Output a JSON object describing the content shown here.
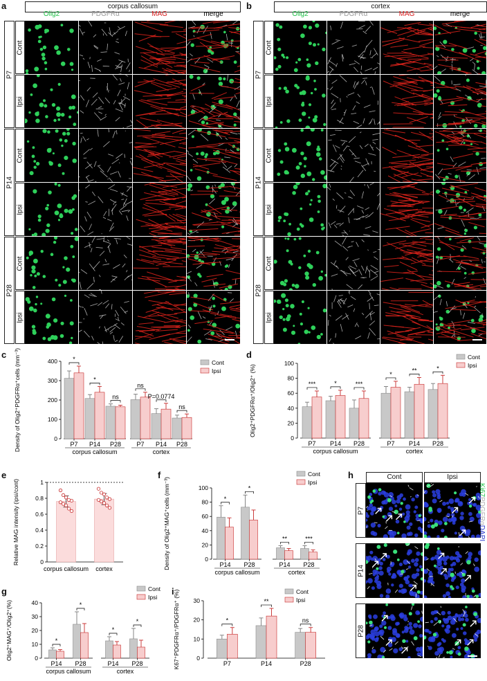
{
  "micrograph_panels": {
    "a": {
      "letter": "a",
      "region": "corpus callosum"
    },
    "b": {
      "letter": "b",
      "region": "cortex"
    },
    "channels": [
      "Olig2",
      "PDGFRα",
      "MAG",
      "merge"
    ],
    "channel_colors": [
      "#22c34a",
      "#9a9a9a",
      "#d81e1e",
      "#000000"
    ],
    "ages": [
      "P7",
      "P14",
      "P28"
    ],
    "conditions": [
      "Cont",
      "Ipsi"
    ],
    "h": {
      "letter": "h",
      "columns": [
        "Cont",
        "Ipsi"
      ],
      "ages": [
        "P7",
        "P14",
        "P28"
      ],
      "stain": [
        {
          "text": "Ki67",
          "color": "#22c34a"
        },
        {
          "text": "PDGFRα",
          "color": "#b0b0b0"
        },
        {
          "text": "DAPI",
          "color": "#2233cc"
        }
      ]
    }
  },
  "chart_data": [
    {
      "id": "c",
      "letter": "c",
      "type": "bar",
      "ylabel": "Density of Olig2⁺PDGFRα⁺cells (mm⁻³)",
      "ylim": [
        0,
        400
      ],
      "yticks": [
        0,
        100,
        200,
        300,
        400
      ],
      "groups": [
        {
          "label": "corpus callosum",
          "categories": [
            "P7",
            "P14",
            "P28"
          ]
        },
        {
          "label": "cortex",
          "categories": [
            "P7",
            "P14",
            "P28"
          ]
        }
      ],
      "series": [
        {
          "name": "Cont",
          "values": [
            312,
            208,
            168,
            202,
            130,
            107
          ],
          "errors": [
            38,
            20,
            12,
            28,
            25,
            15
          ]
        },
        {
          "name": "Ipsi",
          "values": [
            340,
            240,
            165,
            215,
            153,
            110
          ],
          "errors": [
            35,
            30,
            8,
            25,
            30,
            18
          ]
        }
      ],
      "annotations": [
        "*",
        "*",
        "ns",
        "ns",
        "P=0.0774",
        "ns"
      ]
    },
    {
      "id": "d",
      "letter": "d",
      "type": "bar",
      "ylabel": "Olig2⁺PDGFRα⁺/Olig2⁺ (%)",
      "ylim": [
        0,
        100
      ],
      "yticks": [
        0,
        20,
        40,
        60,
        80,
        100
      ],
      "groups": [
        {
          "label": "corpus callosum",
          "categories": [
            "P7",
            "P14",
            "P28"
          ]
        },
        {
          "label": "cortex",
          "categories": [
            "P7",
            "P14",
            "P28"
          ]
        }
      ],
      "series": [
        {
          "name": "Cont",
          "values": [
            42,
            50,
            40,
            60,
            62,
            65
          ],
          "errors": [
            6,
            6,
            11,
            9,
            6,
            8
          ]
        },
        {
          "name": "Ipsi",
          "values": [
            55,
            57,
            53,
            68,
            72,
            73
          ],
          "errors": [
            8,
            7,
            10,
            8,
            9,
            11
          ]
        }
      ],
      "annotations": [
        "***",
        "*",
        "***",
        "*",
        "**",
        "*"
      ]
    },
    {
      "id": "e",
      "letter": "e",
      "type": "bar",
      "ylabel": "Relative MAG intensity (ipsi/cont)",
      "ylim": [
        0,
        1.0
      ],
      "yticks": [
        0,
        0.2,
        0.4,
        0.6,
        0.8,
        1.0
      ],
      "reference_line": 1.0,
      "categories": [
        "corpus callosum",
        "cortex"
      ],
      "values": [
        0.76,
        0.79
      ],
      "errors": [
        0.07,
        0.07
      ],
      "points": [
        [
          0.9,
          0.84,
          0.81,
          0.78,
          0.77,
          0.75,
          0.73,
          0.71,
          0.67,
          0.64
        ],
        [
          0.92,
          0.87,
          0.85,
          0.81,
          0.79,
          0.78,
          0.76,
          0.74,
          0.71,
          0.68
        ]
      ]
    },
    {
      "id": "f",
      "letter": "f",
      "type": "bar",
      "ylabel": "Density of Olig2⁺MAG⁺cells (mm⁻³)",
      "ylim": [
        0,
        100
      ],
      "yticks": [
        0,
        20,
        40,
        60,
        80,
        100
      ],
      "groups": [
        {
          "label": "corpus callosum",
          "categories": [
            "P14",
            "P28"
          ]
        },
        {
          "label": "cortex",
          "categories": [
            "P14",
            "P28"
          ]
        }
      ],
      "series": [
        {
          "name": "Cont",
          "values": [
            59,
            73,
            16,
            15
          ],
          "errors": [
            16,
            17,
            3,
            4
          ]
        },
        {
          "name": "Ipsi",
          "values": [
            45,
            55,
            12,
            10
          ],
          "errors": [
            13,
            14,
            3,
            3
          ]
        }
      ],
      "annotations": [
        "*",
        "*",
        "**",
        "***"
      ]
    },
    {
      "id": "g",
      "letter": "g",
      "type": "bar",
      "ylabel": "Olig2⁺MAG⁺/Olig2⁺(%)",
      "ylim": [
        0,
        40
      ],
      "yticks": [
        0,
        10,
        20,
        30,
        40
      ],
      "groups": [
        {
          "label": "corpus callosum",
          "categories": [
            "P14",
            "P28"
          ]
        },
        {
          "label": "cortex",
          "categories": [
            "P14",
            "P28"
          ]
        }
      ],
      "series": [
        {
          "name": "Cont",
          "values": [
            6,
            24.5,
            12.5,
            14
          ],
          "errors": [
            1.5,
            9,
            3,
            7.5
          ]
        },
        {
          "name": "Ipsi",
          "values": [
            5,
            18.5,
            9.5,
            8
          ],
          "errors": [
            1.2,
            6.5,
            2.5,
            5
          ]
        }
      ],
      "annotations": [
        "*",
        "*",
        "*",
        "*"
      ]
    },
    {
      "id": "i",
      "letter": "i",
      "type": "bar",
      "ylabel": "K67⁺PDGFRα⁺/PDGFRα⁺ (%)",
      "ylim": [
        0,
        30
      ],
      "yticks": [
        0,
        10,
        20,
        30
      ],
      "categories": [
        "P7",
        "P14",
        "P28"
      ],
      "series": [
        {
          "name": "Cont",
          "values": [
            10,
            17,
            13.5
          ],
          "errors": [
            2,
            4,
            2
          ]
        },
        {
          "name": "Ipsi",
          "values": [
            12.5,
            22,
            13.5
          ],
          "errors": [
            3.5,
            4,
            2.5
          ]
        }
      ],
      "annotations": [
        "*",
        "**",
        "ns"
      ]
    }
  ],
  "legend": {
    "cont": "Cont",
    "ipsi": "Ipsi",
    "cont_color": "#c8c8c8",
    "ipsi_color": "#f7cdcd",
    "ipsi_edge": "#c62828"
  }
}
